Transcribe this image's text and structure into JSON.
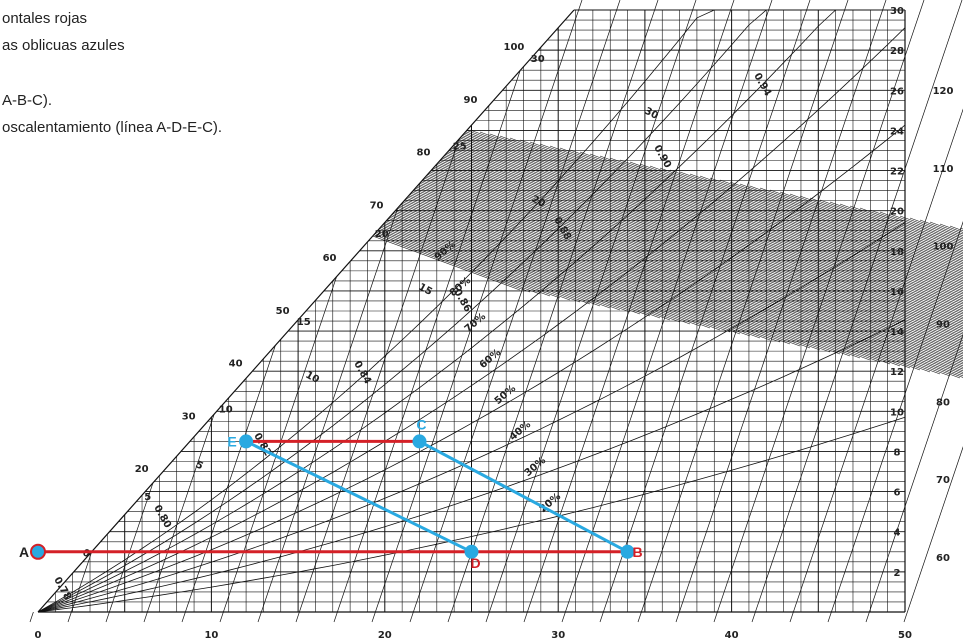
{
  "captions": [
    "ontales rojas",
    "as oblicuas azules",
    "A-B-C).",
    "oscalentamiento (línea A-D-E-C)."
  ],
  "chart_data": {
    "type": "line",
    "title": "",
    "xlabel": "",
    "ylabel": "",
    "x_ticks": [
      0,
      10,
      20,
      30,
      40,
      50
    ],
    "xlim": [
      0,
      50
    ],
    "right_inner_ticks": [
      2,
      4,
      6,
      8,
      10,
      12,
      14,
      16,
      18,
      20,
      22,
      24,
      26,
      28,
      30
    ],
    "right_outer_ticks": [
      60,
      70,
      80,
      90,
      100,
      110,
      120
    ],
    "ylim_inner": [
      0,
      30
    ],
    "saturation_left_ticks": [
      20,
      30,
      40,
      50,
      60,
      70,
      80,
      90,
      100
    ],
    "saturation_inner_ticks": [
      5,
      10,
      15,
      20,
      25,
      30
    ],
    "rh_labels": [
      "90%",
      "80%",
      "70%",
      "60%",
      "50%",
      "40%",
      "30%",
      "20%"
    ],
    "specific_volume_labels": [
      "0.78",
      "0.80",
      "0.82",
      "0.84",
      "0.86",
      "0.88",
      "0.90",
      "0.94"
    ],
    "wet_bulb_labels": [
      "0",
      "5",
      "10",
      "15",
      "20",
      "30"
    ],
    "points": [
      {
        "label": "A",
        "x": 0,
        "y": 3.0,
        "color": "#d42027"
      },
      {
        "label": "B",
        "x": 34,
        "y": 3.0,
        "color": "#d42027"
      },
      {
        "label": "C",
        "x": 22,
        "y": 8.5,
        "color": "#29a9e1"
      },
      {
        "label": "D",
        "x": 25,
        "y": 3.0,
        "color": "#d42027"
      },
      {
        "label": "E",
        "x": 12,
        "y": 8.5,
        "color": "#29a9e1"
      }
    ],
    "series": [
      {
        "color": "#d42027",
        "path": [
          [
            0,
            3.0
          ],
          [
            34,
            3.0
          ]
        ]
      },
      {
        "color": "#d42027",
        "path": [
          [
            12,
            8.5
          ],
          [
            22,
            8.5
          ]
        ]
      },
      {
        "color": "#29a9e1",
        "path": [
          [
            22,
            8.5
          ],
          [
            34,
            3.0
          ]
        ]
      },
      {
        "color": "#29a9e1",
        "path": [
          [
            12,
            8.5
          ],
          [
            25,
            3.0
          ]
        ]
      }
    ],
    "colors": {
      "red": "#d42027",
      "blue": "#29a9e1",
      "grid": "#111111"
    }
  }
}
